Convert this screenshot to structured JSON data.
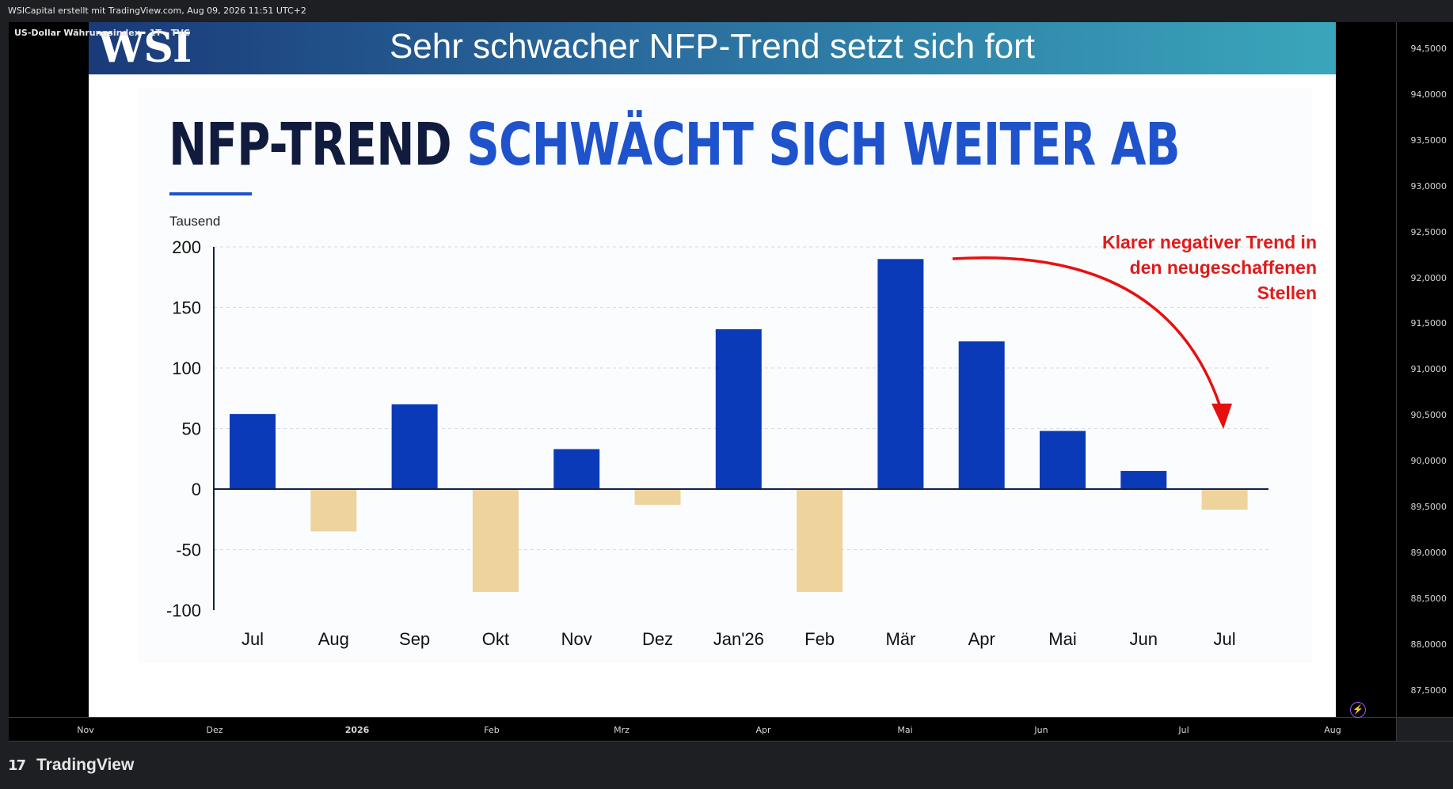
{
  "header": {
    "attribution": "WSICapital erstellt mit TradingView.com, Aug 09, 2026 11:51 UTC+2",
    "symbol": "US-Dollar Währungsindex · 1T · TVC"
  },
  "banner": {
    "logo": "WSI",
    "title": "Sehr schwacher NFP-Trend setzt sich fort"
  },
  "slide": {
    "headline_dark": "NFP-TREND",
    "headline_blue": "SCHWÄCHT SICH WEITER AB",
    "annotation_lines": [
      "Klarer negativer Trend in",
      "den neugeschaffenen",
      "Stellen"
    ],
    "colors": {
      "positive": "#0a3ab8",
      "negative": "#eed39d",
      "headline_blue": "#1e53cc",
      "annotation": "#e11b1b"
    }
  },
  "chart_data": {
    "type": "bar",
    "ylabel": "Tausend",
    "categories": [
      "Jul",
      "Aug",
      "Sep",
      "Okt",
      "Nov",
      "Dez",
      "Jan'26",
      "Feb",
      "Mär",
      "Apr",
      "Mai",
      "Jun",
      "Jul"
    ],
    "values": [
      62,
      -35,
      70,
      -85,
      33,
      -13,
      132,
      -85,
      190,
      122,
      48,
      15,
      -17
    ],
    "ylim": [
      -100,
      200
    ],
    "yticks": [
      200,
      150,
      100,
      50,
      0,
      -50,
      -100
    ],
    "grid": true
  },
  "price_axis": {
    "labels": [
      "94,5000",
      "94,0000",
      "93,5000",
      "93,0000",
      "92,5000",
      "92,0000",
      "91,5000",
      "91,0000",
      "90,5000",
      "90,0000",
      "89,5000",
      "89,0000",
      "88,5000",
      "88,0000",
      "87,5000"
    ]
  },
  "time_axis": {
    "labels": [
      "Nov",
      "Dez",
      "2026",
      "Feb",
      "Mrz",
      "Apr",
      "Mai",
      "Jun",
      "Jul",
      "Aug"
    ]
  },
  "footer": {
    "logo_glyph": "17",
    "brand": "TradingView"
  }
}
